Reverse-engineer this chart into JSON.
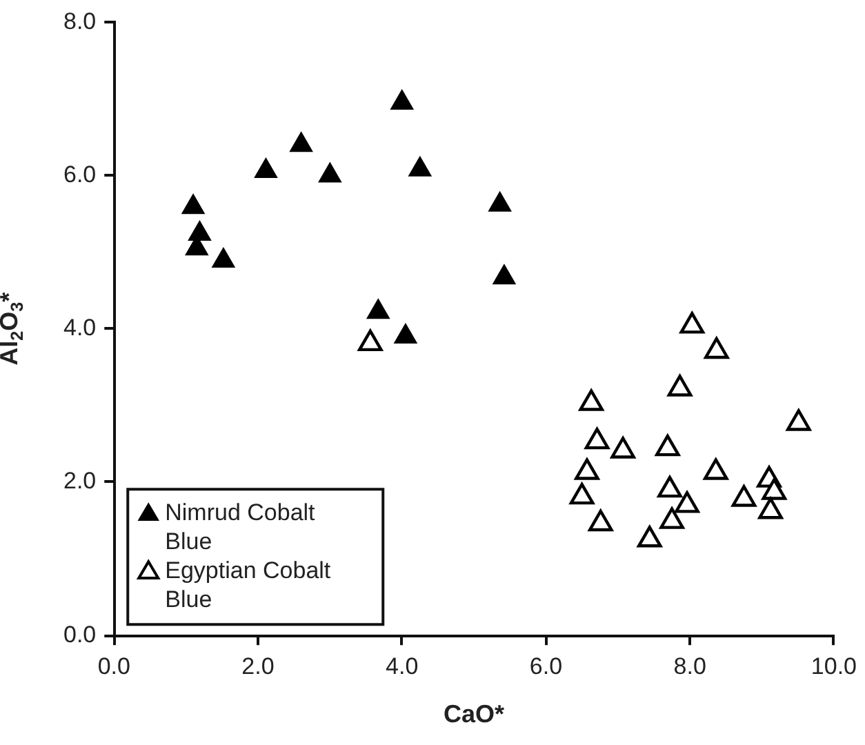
{
  "chart_data": {
    "type": "scatter",
    "xlabel": "CaO*",
    "ylabel": "Al$_{2}$O$_{3}$*",
    "xlim": [
      0,
      10
    ],
    "xticks": [
      {
        "value": 0,
        "label": "0.0"
      },
      {
        "value": 2,
        "label": "2.0"
      },
      {
        "value": 4,
        "label": "4.0"
      },
      {
        "value": 6,
        "label": "6.0"
      },
      {
        "value": 8,
        "label": "8.0"
      },
      {
        "value": 10,
        "label": "10.0"
      }
    ],
    "ylim": [
      0,
      8
    ],
    "yticks": [
      {
        "value": 0,
        "label": "0.0"
      },
      {
        "value": 2,
        "label": "2.0"
      },
      {
        "value": 4,
        "label": "4.0"
      },
      {
        "value": 6,
        "label": "6.0"
      },
      {
        "value": 8,
        "label": "8.0"
      }
    ],
    "grid": false,
    "legend": "bottom left",
    "marker": "triangle",
    "series": [
      {
        "name": "Nimrud Cobalt Blue",
        "color": "#000000",
        "x": [
          1.1,
          1.19,
          1.15,
          1.52,
          2.11,
          2.6,
          3.0,
          4.25,
          4.0,
          5.36,
          5.42,
          3.67,
          4.05
        ],
        "values": [
          5.59,
          5.24,
          5.05,
          4.89,
          6.06,
          6.4,
          6.0,
          6.08,
          6.95,
          5.62,
          4.67,
          4.22,
          3.9
        ]
      },
      {
        "name": "Egyptian Cobalt Blue",
        "color": "#ffffff",
        "x": [
          3.56,
          8.03,
          8.37,
          7.86,
          6.63,
          9.51,
          6.71,
          7.07,
          7.69,
          6.57,
          8.36,
          6.5,
          7.72,
          7.96,
          7.75,
          8.75,
          9.1,
          9.17,
          9.12,
          6.76,
          7.44
        ],
        "values": [
          3.81,
          4.04,
          3.71,
          3.22,
          3.03,
          2.77,
          2.53,
          2.41,
          2.44,
          2.13,
          2.13,
          1.81,
          1.9,
          1.7,
          1.49,
          1.78,
          2.03,
          1.87,
          1.62,
          1.46,
          1.25
        ]
      }
    ]
  }
}
